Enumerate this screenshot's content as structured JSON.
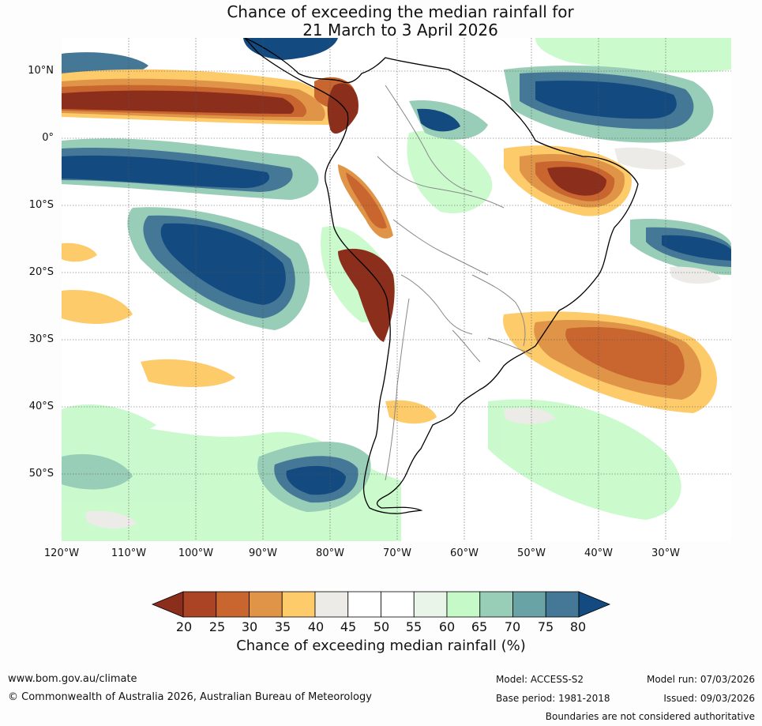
{
  "title": {
    "line1": "Chance of exceeding the median rainfall for",
    "line2": "21 March to 3 April 2026"
  },
  "map": {
    "lat_labels": [
      "10°N",
      "0°",
      "10°S",
      "20°S",
      "30°S",
      "40°S",
      "50°S"
    ],
    "lon_labels": [
      "120°W",
      "110°W",
      "100°W",
      "90°W",
      "80°W",
      "70°W",
      "60°W",
      "50°W",
      "40°W",
      "30°W"
    ],
    "extent": {
      "lon_min": -120,
      "lon_max": -20,
      "lat_min": -60,
      "lat_max": 15
    }
  },
  "colorbar": {
    "ticks": [
      "20",
      "25",
      "30",
      "35",
      "40",
      "45",
      "50",
      "55",
      "60",
      "65",
      "70",
      "75",
      "80"
    ],
    "colors": [
      "#8b2e1c",
      "#ab4424",
      "#c9652f",
      "#e09447",
      "#fdcb6a",
      "#ecebe7",
      "#ffffff",
      "#ffffff",
      "#e9f5e9",
      "#c5f9c8",
      "#98cdb7",
      "#6aa3a6",
      "#457796",
      "#134a80"
    ],
    "label": "Chance of exceeding median rainfall (%)"
  },
  "footer": {
    "website": "www.bom.gov.au/climate",
    "copyright": "© Commonwealth of Australia 2026, Australian Bureau of Meteorology",
    "model": "Model: ACCESS-S2",
    "base_period": "Base period: 1981-2018",
    "model_run": "Model run: 07/03/2026",
    "issued": "Issued: 09/03/2026",
    "disclaimer": "Boundaries are not considered authoritative"
  }
}
